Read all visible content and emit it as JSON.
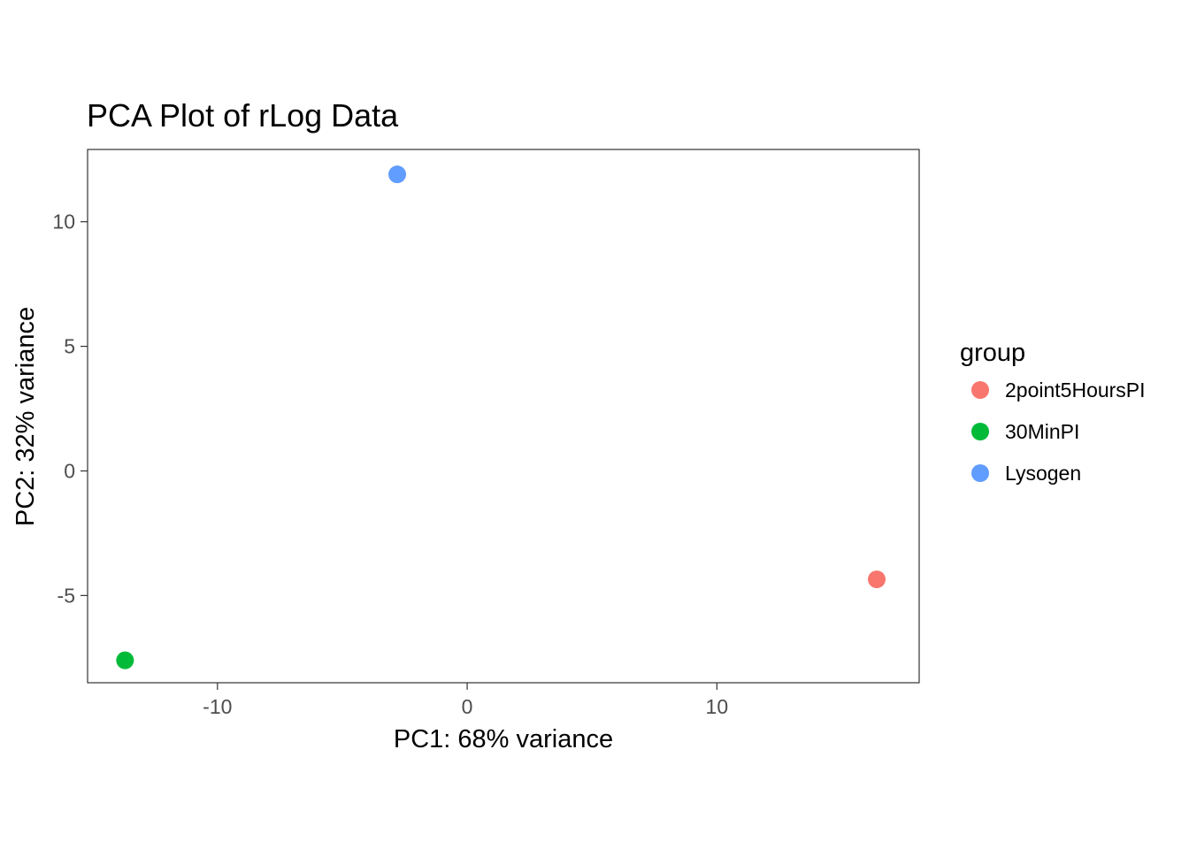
{
  "chart_data": {
    "type": "scatter",
    "title": "PCA Plot of rLog Data",
    "xlabel": "PC1: 68% variance",
    "ylabel": "PC2: 32% variance",
    "xlim": [
      -15.2,
      18.1
    ],
    "ylim": [
      -8.5,
      12.9
    ],
    "xticks": [
      -10,
      0,
      10
    ],
    "xtick_labels": [
      "-10",
      "0",
      "10"
    ],
    "yticks": [
      -5,
      0,
      5,
      10
    ],
    "ytick_labels": [
      "-5",
      "0",
      "5",
      "10"
    ],
    "grid": false,
    "legend_position": "right",
    "legend_title": "group",
    "series": [
      {
        "name": "2point5HoursPI",
        "color": "#F8766D",
        "points": [
          {
            "x": 16.4,
            "y": -4.35
          }
        ]
      },
      {
        "name": "30MinPI",
        "color": "#00BA38",
        "points": [
          {
            "x": -13.7,
            "y": -7.6
          }
        ]
      },
      {
        "name": "Lysogen",
        "color": "#619CFF",
        "points": [
          {
            "x": -2.8,
            "y": 11.9
          }
        ]
      }
    ]
  }
}
